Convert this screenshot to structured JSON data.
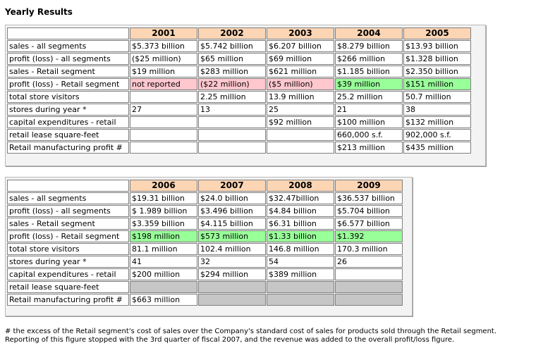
{
  "title": "Yearly Results",
  "row_labels": [
    "sales - all segments",
    "profit (loss) - all segments",
    "sales - Retail segment",
    "profit (loss) - Retail segment",
    "total store visitors",
    "stores during year *",
    "capital expenditures - retail",
    "retail lease square-feet",
    "Retail manufacturing profit #"
  ],
  "table1": {
    "years": [
      "2001",
      "2002",
      "2003",
      "2004",
      "2005"
    ],
    "rows": [
      [
        "$5.373 billion",
        "$5.742 billion",
        "$6.207 billion",
        "$8.279 billion",
        "$13.93 billion"
      ],
      [
        "($25 million)",
        "$65 million",
        "$69 million",
        "$266 million",
        "$1.328 billion"
      ],
      [
        "$19 million",
        "$283 million",
        "$621 million",
        "$1.185 billion",
        "$2.350 billion"
      ],
      [
        "not reported",
        "($22 million)",
        "($5 million)",
        "$39 million",
        "$151 million"
      ],
      [
        "",
        "2.25 million",
        "13.9 million",
        "25.2 million",
        "50.7 million"
      ],
      [
        "27",
        "13",
        "25",
        "21",
        "38"
      ],
      [
        "",
        "",
        "$92 million",
        "$100 million",
        "$132 million"
      ],
      [
        "",
        "",
        "",
        "660,000 s.f.",
        "902,000 s.f."
      ],
      [
        "",
        "",
        "",
        "$213 million",
        "$435 million"
      ]
    ],
    "highlight_colors": {
      "loss": "#ffc7ce",
      "profit": "#99ff99"
    }
  },
  "table2": {
    "years": [
      "2006",
      "2007",
      "2008",
      "2009"
    ],
    "rows": [
      [
        "$19.31 billion",
        "$24.0 billion",
        "$32.47billion",
        "$36.537 billion"
      ],
      [
        "$ 1.989 billion",
        "$3.496 billion",
        "$4.84 billion",
        "$5.704 billion"
      ],
      [
        "$3.359 billion",
        "$4.115 billion",
        "$6.31 billion",
        "$6.577 billion"
      ],
      [
        "$198 million",
        "$573 million",
        "$1.33 billion",
        "$1.392"
      ],
      [
        "81.1 million",
        "102.4 million",
        "146.8 million",
        "170.3 million"
      ],
      [
        "41",
        "32",
        "54",
        "26"
      ],
      [
        "$200 million",
        "$294 million",
        "$389 million",
        ""
      ],
      [
        "",
        "",
        "",
        ""
      ],
      [
        "$663 million",
        "",
        "",
        ""
      ]
    ]
  },
  "footnote_line1": "# the excess of the Retail segment's cost of sales over the Company's standard cost of sales for products sold through the Retail segment.",
  "footnote_line2": "Reporting of this figure stopped with the 3rd quarter of fiscal 2007, and the revenue was added to the overall profit/loss figure."
}
